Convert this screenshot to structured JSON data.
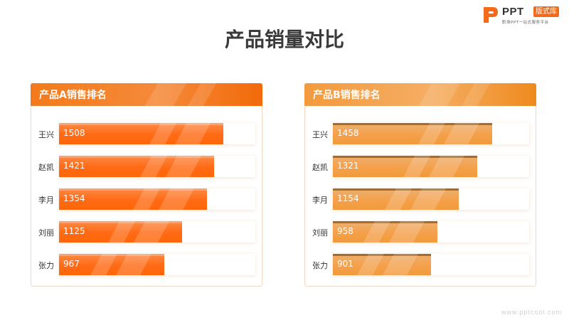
{
  "logo": {
    "text": "PPT",
    "badge": "版式库",
    "subtitle": "职场PPT一站式服务平台"
  },
  "title": "产品销量对比",
  "watermark": "www.pptcool.com",
  "colors": {
    "accent_a": "#ff6a14",
    "accent_b": "#f5a04a",
    "title": "#3a3a3a"
  },
  "chart_data": [
    {
      "type": "bar",
      "orientation": "horizontal",
      "title": "产品A销售排名",
      "categories": [
        "王兴",
        "赵凯",
        "李月",
        "刘丽",
        "张力"
      ],
      "values": [
        1508,
        1421,
        1354,
        1125,
        967
      ],
      "xlim": [
        0,
        1800
      ]
    },
    {
      "type": "bar",
      "orientation": "horizontal",
      "title": "产品B销售排名",
      "categories": [
        "王兴",
        "赵凯",
        "李月",
        "刘丽",
        "张力"
      ],
      "values": [
        1458,
        1321,
        1154,
        958,
        901
      ],
      "xlim": [
        0,
        1800
      ]
    }
  ]
}
